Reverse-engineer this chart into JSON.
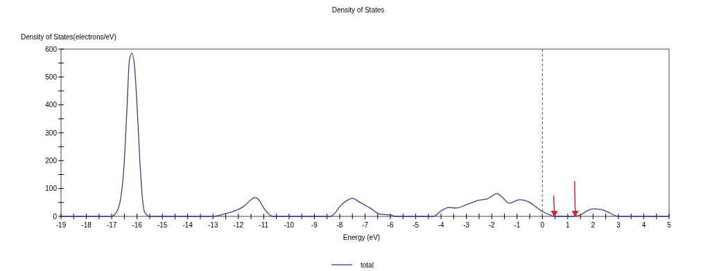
{
  "chart_data": {
    "type": "line",
    "title": "Density of States",
    "xlabel": "Energy (eV)",
    "ylabel": "Density of States(electrons/eV)",
    "xlim": [
      -19,
      5
    ],
    "ylim": [
      0,
      600
    ],
    "xticks": [
      -19,
      {
        "value": -18.5,
        "label": null
      },
      -18,
      {
        "value": -17.5,
        "label": null
      },
      -17,
      {
        "value": -16.5,
        "label": null
      },
      -16,
      {
        "value": -15.5,
        "label": null
      },
      -15,
      {
        "value": -14.5,
        "label": null
      },
      -14,
      {
        "value": -13.5,
        "label": null
      },
      -13,
      {
        "value": -12.5,
        "label": null
      },
      -12,
      {
        "value": -11.5,
        "label": null
      },
      -11,
      {
        "value": -10.5,
        "label": null
      },
      -10,
      {
        "value": -9.5,
        "label": null
      },
      -9,
      {
        "value": -8.5,
        "label": null
      },
      -8,
      {
        "value": -7.5,
        "label": null
      },
      -7,
      {
        "value": -6.5,
        "label": null
      },
      -6,
      {
        "value": -5.5,
        "label": null
      },
      -5,
      {
        "value": -4.5,
        "label": null
      },
      -4,
      {
        "value": -3.5,
        "label": null
      },
      -3,
      {
        "value": -2.5,
        "label": null
      },
      -2,
      {
        "value": -1.5,
        "label": null
      },
      -1,
      {
        "value": -0.5,
        "label": null
      },
      0,
      {
        "value": 0.5,
        "label": null
      },
      1,
      {
        "value": 1.5,
        "label": null
      },
      2,
      {
        "value": 2.5,
        "label": null
      },
      3,
      {
        "value": 3.5,
        "label": null
      },
      4,
      {
        "value": 4.5,
        "label": null
      },
      5
    ],
    "yticks": [
      0,
      {
        "value": 50,
        "label": null
      },
      100,
      {
        "value": 150,
        "label": null
      },
      200,
      {
        "value": 250,
        "label": null
      },
      300,
      {
        "value": 350,
        "label": null
      },
      400,
      {
        "value": 450,
        "label": null
      },
      500,
      {
        "value": 550,
        "label": null
      },
      600
    ],
    "grid": false,
    "legend": "bottom",
    "marker": "none",
    "line_style": "solid",
    "ref_lines": [
      {
        "axis": "x",
        "value": 0,
        "color": "#555555",
        "line_style": "dashed"
      }
    ],
    "series": [
      {
        "name": "total",
        "color": "#3a3a9a",
        "x": [
          -19,
          -17,
          -16.9,
          -16.7,
          -16.5,
          -16.4,
          -16.3,
          -16.2,
          -16.1,
          -16.0,
          -15.9,
          -15.8,
          -15.7,
          -15.5,
          -13,
          -12.5,
          -12,
          -11.8,
          -11.5,
          -11.35,
          -11.2,
          -11,
          -10.8,
          -10.6,
          -8.4,
          -8.2,
          -8,
          -7.7,
          -7.5,
          -7.2,
          -6.8,
          -6.4,
          -6,
          -5.8,
          -4.3,
          -4,
          -3.7,
          -3.4,
          -3,
          -2.5,
          -2.2,
          -2,
          -1.8,
          -1.6,
          -1.3,
          -1.2,
          -0.9,
          -0.5,
          -0.2,
          0,
          0.3,
          0.5,
          1.2,
          1.5,
          1.8,
          2.0,
          2.3,
          2.6,
          2.9,
          3,
          5
        ],
        "values": [
          0,
          0,
          5,
          40,
          200,
          380,
          560,
          585,
          540,
          400,
          220,
          80,
          15,
          0,
          0,
          10,
          25,
          35,
          60,
          68,
          60,
          30,
          8,
          0,
          0,
          10,
          35,
          58,
          65,
          50,
          30,
          8,
          5,
          0,
          0,
          20,
          32,
          30,
          42,
          58,
          62,
          72,
          82,
          70,
          47,
          50,
          60,
          50,
          30,
          18,
          5,
          0,
          0,
          5,
          22,
          27,
          25,
          15,
          2,
          0,
          0
        ]
      }
    ]
  }
}
